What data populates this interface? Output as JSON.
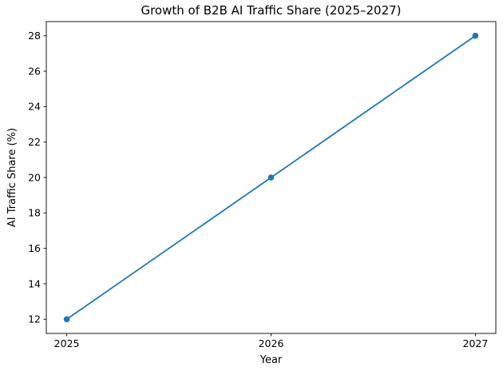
{
  "chart_data": {
    "type": "line",
    "title": "Growth of B2B AI Traffic Share (2025–2027)",
    "xlabel": "Year",
    "ylabel": "AI Traffic Share (%)",
    "x": [
      2025,
      2026,
      2027
    ],
    "y": [
      12,
      20,
      28
    ],
    "series": [
      {
        "name": "AI Traffic Share",
        "x": [
          2025,
          2026,
          2027
        ],
        "values": [
          12,
          20,
          28
        ]
      }
    ],
    "x_ticks": [
      "2025",
      "2026",
      "2027"
    ],
    "x_tick_values": [
      2025,
      2026,
      2027
    ],
    "y_ticks": [
      "12",
      "14",
      "16",
      "18",
      "20",
      "22",
      "24",
      "26",
      "28"
    ],
    "y_tick_values": [
      12,
      14,
      16,
      18,
      20,
      22,
      24,
      26,
      28
    ],
    "xlim": [
      2024.9,
      2027.1
    ],
    "ylim": [
      11.2,
      28.8
    ],
    "grid": false,
    "legend": null,
    "marker": "circle",
    "line_color": "#1f77b4",
    "axis_color": "#000000",
    "background": "#ffffff"
  }
}
